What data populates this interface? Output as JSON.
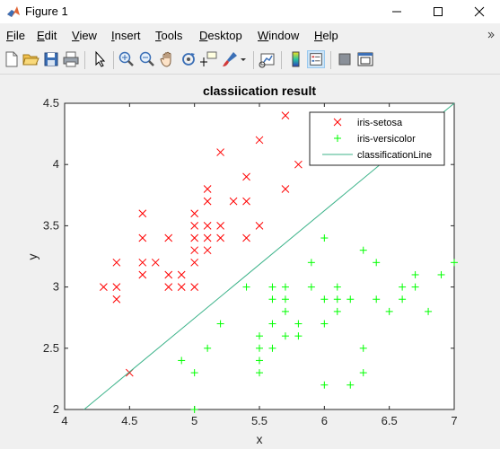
{
  "window": {
    "title": "Figure 1"
  },
  "menu": [
    {
      "label": "File",
      "ul": "F",
      "rest": "ile"
    },
    {
      "label": "Edit",
      "ul": "E",
      "rest": "dit"
    },
    {
      "label": "View",
      "ul": "V",
      "rest": "iew"
    },
    {
      "label": "Insert",
      "ul": "I",
      "rest": "nsert"
    },
    {
      "label": "Tools",
      "ul": "T",
      "rest": "ools"
    },
    {
      "label": "Desktop",
      "ul": "D",
      "rest": "esktop"
    },
    {
      "label": "Window",
      "ul": "W",
      "rest": "indow"
    },
    {
      "label": "Help",
      "ul": "H",
      "rest": "elp"
    }
  ],
  "toolbar": [
    "new-figure-icon",
    "open-file-icon",
    "save-icon",
    "print-icon",
    "select-arrow-icon",
    "zoom-in-icon",
    "zoom-out-icon",
    "pan-hand-icon",
    "rotate-3d-icon",
    "data-cursor-icon",
    "brush-icon",
    "link-plot-icon",
    "colorbar-icon",
    "legend-icon",
    "hide-plot-tools-icon",
    "show-plot-tools-icon"
  ],
  "chart_data": {
    "type": "scatter",
    "title": "classiication result",
    "xlabel": "x",
    "ylabel": "y",
    "xlim": [
      4,
      7
    ],
    "ylim": [
      2,
      4.5
    ],
    "xticks": [
      "4",
      "4.5",
      "5",
      "5.5",
      "6",
      "6.5",
      "7"
    ],
    "yticks": [
      "2",
      "2.5",
      "3",
      "3.5",
      "4",
      "4.5"
    ],
    "legend_position": "top-right",
    "series": [
      {
        "name": "iris-setosa",
        "marker": "x",
        "color": "#ff0000",
        "points": [
          [
            4.3,
            3.0
          ],
          [
            4.4,
            2.9
          ],
          [
            4.4,
            3.0
          ],
          [
            4.4,
            3.2
          ],
          [
            4.5,
            2.3
          ],
          [
            4.6,
            3.1
          ],
          [
            4.6,
            3.2
          ],
          [
            4.6,
            3.4
          ],
          [
            4.6,
            3.6
          ],
          [
            4.7,
            3.2
          ],
          [
            4.8,
            3.0
          ],
          [
            4.8,
            3.1
          ],
          [
            4.8,
            3.4
          ],
          [
            4.9,
            3.0
          ],
          [
            4.9,
            3.1
          ],
          [
            5.0,
            3.0
          ],
          [
            5.0,
            3.2
          ],
          [
            5.0,
            3.3
          ],
          [
            5.0,
            3.4
          ],
          [
            5.0,
            3.5
          ],
          [
            5.0,
            3.6
          ],
          [
            5.1,
            3.3
          ],
          [
            5.1,
            3.4
          ],
          [
            5.1,
            3.5
          ],
          [
            5.1,
            3.7
          ],
          [
            5.1,
            3.8
          ],
          [
            5.2,
            3.4
          ],
          [
            5.2,
            3.5
          ],
          [
            5.2,
            4.1
          ],
          [
            5.3,
            3.7
          ],
          [
            5.4,
            3.4
          ],
          [
            5.4,
            3.7
          ],
          [
            5.4,
            3.9
          ],
          [
            5.5,
            3.5
          ],
          [
            5.5,
            4.2
          ],
          [
            5.7,
            3.8
          ],
          [
            5.7,
            4.4
          ],
          [
            5.8,
            4.0
          ]
        ]
      },
      {
        "name": "iris-versicolor",
        "marker": "+",
        "color": "#00ff00",
        "points": [
          [
            4.9,
            2.4
          ],
          [
            5.0,
            2.0
          ],
          [
            5.0,
            2.3
          ],
          [
            5.1,
            2.5
          ],
          [
            5.2,
            2.7
          ],
          [
            5.4,
            3.0
          ],
          [
            5.5,
            2.3
          ],
          [
            5.5,
            2.4
          ],
          [
            5.5,
            2.5
          ],
          [
            5.5,
            2.6
          ],
          [
            5.6,
            2.5
          ],
          [
            5.6,
            2.7
          ],
          [
            5.6,
            2.9
          ],
          [
            5.6,
            3.0
          ],
          [
            5.7,
            2.6
          ],
          [
            5.7,
            2.8
          ],
          [
            5.7,
            2.9
          ],
          [
            5.7,
            3.0
          ],
          [
            5.8,
            2.6
          ],
          [
            5.8,
            2.7
          ],
          [
            5.9,
            3.0
          ],
          [
            5.9,
            3.2
          ],
          [
            6.0,
            2.2
          ],
          [
            6.0,
            2.7
          ],
          [
            6.0,
            2.9
          ],
          [
            6.0,
            3.4
          ],
          [
            6.1,
            2.8
          ],
          [
            6.1,
            2.9
          ],
          [
            6.1,
            3.0
          ],
          [
            6.2,
            2.2
          ],
          [
            6.2,
            2.9
          ],
          [
            6.3,
            2.3
          ],
          [
            6.3,
            2.5
          ],
          [
            6.3,
            3.3
          ],
          [
            6.4,
            2.9
          ],
          [
            6.4,
            3.2
          ],
          [
            6.5,
            2.8
          ],
          [
            6.6,
            2.9
          ],
          [
            6.6,
            3.0
          ],
          [
            6.7,
            3.0
          ],
          [
            6.7,
            3.1
          ],
          [
            6.8,
            2.8
          ],
          [
            6.9,
            3.1
          ],
          [
            7.0,
            3.2
          ]
        ]
      },
      {
        "name": "classificationLine",
        "marker": "line",
        "color": "#3cb38a",
        "points": [
          [
            4.15,
            2.0
          ],
          [
            7.0,
            4.5
          ]
        ]
      }
    ]
  }
}
